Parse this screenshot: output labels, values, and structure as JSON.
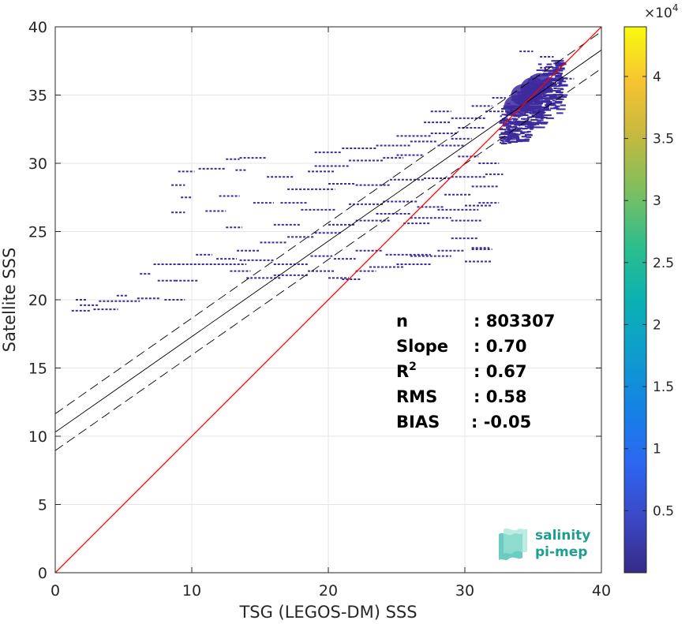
{
  "chart_data": {
    "type": "heatmap",
    "xlabel": "TSG (LEGOS-DM) SSS",
    "ylabel": "Satellite SSS",
    "xlim": [
      0,
      40
    ],
    "ylim": [
      0,
      40
    ],
    "xticks": [
      0,
      10,
      20,
      30,
      40
    ],
    "yticks": [
      0,
      5,
      10,
      15,
      20,
      25,
      30,
      35,
      40
    ],
    "grid": true,
    "colorbar": {
      "range": [
        0,
        44000
      ],
      "exponent_label": "×10",
      "exponent_power": "4",
      "ticks": [
        0.5,
        1,
        1.5,
        2,
        2.5,
        3,
        3.5,
        4
      ],
      "colormap": "parula"
    },
    "identity_line": {
      "points": [
        [
          0,
          0
        ],
        [
          40,
          40
        ]
      ],
      "color": "#ff0000"
    },
    "fit_line": {
      "intercept": 10.3,
      "slope": 0.7,
      "color": "#000000"
    },
    "fit_bounds": {
      "offset": 1.35,
      "style": "dashed"
    },
    "stats": [
      {
        "label": "n",
        "value": ": 803307"
      },
      {
        "label": "Slope",
        "value": ": 0.70"
      },
      {
        "label": "R",
        "sup": "2",
        "value": ": 0.67"
      },
      {
        "label": "RMS",
        "value": ": 0.58"
      },
      {
        "label": "BIAS",
        "value": ": -0.05"
      }
    ],
    "density_core": {
      "x_range": [
        32.5,
        37.0
      ],
      "y_range": [
        31.5,
        37.0
      ],
      "color": "#3d2a9c"
    },
    "scatter_segments": [
      [
        1.2,
        2.6,
        19.2
      ],
      [
        1.8,
        3.2,
        19.6
      ],
      [
        2.8,
        4.6,
        19.3
      ],
      [
        3.2,
        6.2,
        19.9
      ],
      [
        1.5,
        2.3,
        20.0
      ],
      [
        4.5,
        5.3,
        20.3
      ],
      [
        6.0,
        7.7,
        20.1
      ],
      [
        8.0,
        9.5,
        20.0
      ],
      [
        6.2,
        7.0,
        21.9
      ],
      [
        7.5,
        8.8,
        21.4
      ],
      [
        8.8,
        10.5,
        21.4
      ],
      [
        7.2,
        9.0,
        22.6
      ],
      [
        9.0,
        14.0,
        22.6
      ],
      [
        12.8,
        14.3,
        22.1
      ],
      [
        13.5,
        16.0,
        22.9
      ],
      [
        16.0,
        18.5,
        21.8
      ],
      [
        14.0,
        16.5,
        21.6
      ],
      [
        18.5,
        20.5,
        22.1
      ],
      [
        20.0,
        21.5,
        21.6
      ],
      [
        21.0,
        22.4,
        21.5
      ],
      [
        22.0,
        23.5,
        22.1
      ],
      [
        23.0,
        25.5,
        22.4
      ],
      [
        25.0,
        27.5,
        22.6
      ],
      [
        10.3,
        11.5,
        23.3
      ],
      [
        11.8,
        13.3,
        23.0
      ],
      [
        13.3,
        15.0,
        23.6
      ],
      [
        16.0,
        18.6,
        22.6
      ],
      [
        18.7,
        20.3,
        23.2
      ],
      [
        20.4,
        22.0,
        23.0
      ],
      [
        22.0,
        24.0,
        23.6
      ],
      [
        24.2,
        27.5,
        23.3
      ],
      [
        26.0,
        29.0,
        23.2
      ],
      [
        28.0,
        30.0,
        23.6
      ],
      [
        29.0,
        31.0,
        24.5
      ],
      [
        30.5,
        31.8,
        23.8
      ],
      [
        15.0,
        17.0,
        24.2
      ],
      [
        17.0,
        19.0,
        24.6
      ],
      [
        19.0,
        21.0,
        24.9
      ],
      [
        12.5,
        13.7,
        25.3
      ],
      [
        16.0,
        18.0,
        25.5
      ],
      [
        20.0,
        22.0,
        25.5
      ],
      [
        22.0,
        24.5,
        25.8
      ],
      [
        18.0,
        20.5,
        26.6
      ],
      [
        21.5,
        24.0,
        27.0
      ],
      [
        24.0,
        26.5,
        27.2
      ],
      [
        26.5,
        28.5,
        26.8
      ],
      [
        28.0,
        31.0,
        26.6
      ],
      [
        30.0,
        32.0,
        26.9
      ],
      [
        31.0,
        32.5,
        27.1
      ],
      [
        23.5,
        26.0,
        26.3
      ],
      [
        26.0,
        29.0,
        26.0
      ],
      [
        29.0,
        31.2,
        25.8
      ],
      [
        8.5,
        9.5,
        26.4
      ],
      [
        11.0,
        12.5,
        26.5
      ],
      [
        9.2,
        10.0,
        27.5
      ],
      [
        12.0,
        13.5,
        27.6
      ],
      [
        14.5,
        16.0,
        27.1
      ],
      [
        16.5,
        18.5,
        27.1
      ],
      [
        17.0,
        20.5,
        28.1
      ],
      [
        20.0,
        22.0,
        28.5
      ],
      [
        22.0,
        24.5,
        28.4
      ],
      [
        24.5,
        27.0,
        28.8
      ],
      [
        27.0,
        29.0,
        28.9
      ],
      [
        29.0,
        31.5,
        29.0
      ],
      [
        8.5,
        9.5,
        28.4
      ],
      [
        9.0,
        10.2,
        29.4
      ],
      [
        10.5,
        12.5,
        29.6
      ],
      [
        13.2,
        14.0,
        29.5
      ],
      [
        15.5,
        17.5,
        29.0
      ],
      [
        18.5,
        20.5,
        29.4
      ],
      [
        19.0,
        21.5,
        29.8
      ],
      [
        21.5,
        24.0,
        30.2
      ],
      [
        24.0,
        25.5,
        30.4
      ],
      [
        25.0,
        27.0,
        30.6
      ],
      [
        12.5,
        13.5,
        30.3
      ],
      [
        13.5,
        15.5,
        30.4
      ],
      [
        19.0,
        21.0,
        30.8
      ],
      [
        21.0,
        23.5,
        31.1
      ],
      [
        23.5,
        26.0,
        31.3
      ],
      [
        26.0,
        28.0,
        31.6
      ],
      [
        28.0,
        30.0,
        31.3
      ],
      [
        25.0,
        27.5,
        32.0
      ],
      [
        27.5,
        29.5,
        32.2
      ],
      [
        29.5,
        31.5,
        32.6
      ],
      [
        27.0,
        29.0,
        33.0
      ],
      [
        29.0,
        31.5,
        33.3
      ],
      [
        31.5,
        33.0,
        33.8
      ],
      [
        27.5,
        29.0,
        33.8
      ],
      [
        30.5,
        32.0,
        34.2
      ],
      [
        32.0,
        33.0,
        34.8
      ],
      [
        36.5,
        38.0,
        36.2
      ],
      [
        35.5,
        37.0,
        37.0
      ],
      [
        35.5,
        36.5,
        37.8
      ],
      [
        34.0,
        35.0,
        38.2
      ],
      [
        30.5,
        32.0,
        23.7
      ],
      [
        29.5,
        31.0,
        30.5
      ],
      [
        29.0,
        30.5,
        31.8
      ],
      [
        31.0,
        32.5,
        30.0
      ],
      [
        31.5,
        32.8,
        29.2
      ],
      [
        30.5,
        32.5,
        28.3
      ],
      [
        25.5,
        27.5,
        25.6
      ],
      [
        28.5,
        30.5,
        27.7
      ],
      [
        30.0,
        32.0,
        22.8
      ]
    ]
  },
  "logo": {
    "line1": "salinity",
    "line2": "pi-mep"
  }
}
